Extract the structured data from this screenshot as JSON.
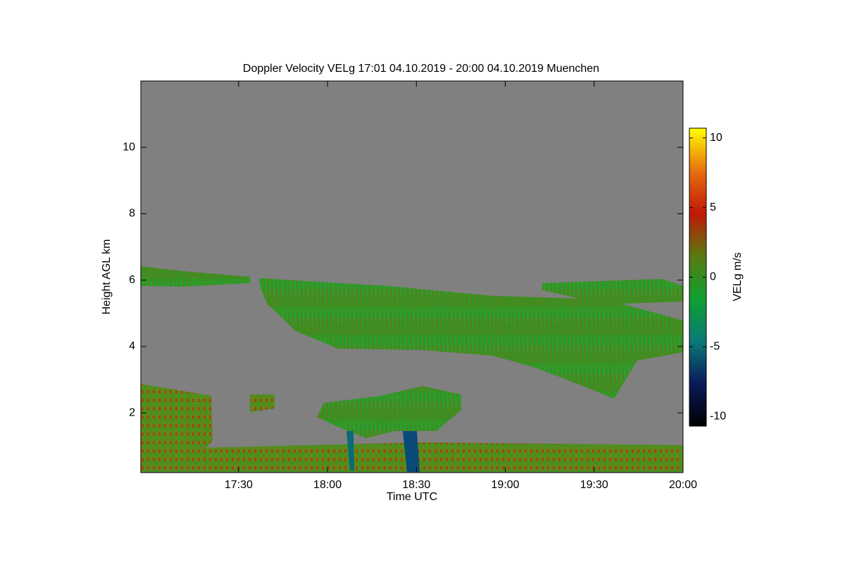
{
  "chart_data": {
    "type": "heatmap",
    "title": "Doppler Velocity VELg   17:01 04.10.2019 - 20:00 04.10.2019 Muenchen",
    "x_label": "Time UTC",
    "y_label": "Height AGL km",
    "colorbar_label": "VELg m/s",
    "xlim": [
      16.95,
      20.0
    ],
    "xticks": [
      {
        "value": 17.5,
        "label": "17:30"
      },
      {
        "value": 18.0,
        "label": "18:00"
      },
      {
        "value": 18.5,
        "label": "18:30"
      },
      {
        "value": 19.0,
        "label": "19:00"
      },
      {
        "value": 19.5,
        "label": "19:30"
      },
      {
        "value": 20.0,
        "label": "20:00"
      }
    ],
    "ylim": [
      0.2,
      12.0
    ],
    "yticks": [
      2,
      4,
      6,
      8,
      10
    ],
    "clim": [
      -10.7,
      10.7
    ],
    "cticks": [
      -10,
      -5,
      0,
      5,
      10
    ],
    "colormap": [
      "#000000",
      "#0a1a5a",
      "#0a7a78",
      "#10a030",
      "#5a7a10",
      "#c01808",
      "#e87010",
      "#ffff00"
    ],
    "background_color": "#808080"
  }
}
